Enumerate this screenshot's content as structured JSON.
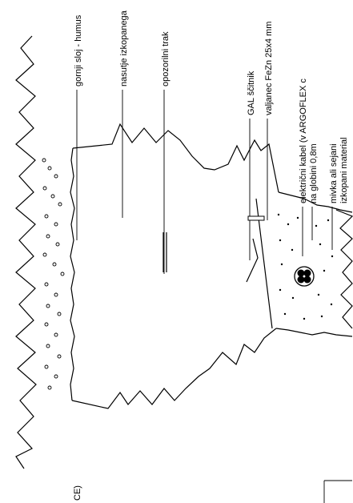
{
  "labels": {
    "top_soil": "gornji sloj - humus",
    "backfill": "nasutje izkopanega",
    "warning_tape": "opozorilni trak",
    "gal_guard": "GAL ščitnik",
    "earthing_strip": "valjanec FeZn 25x4 mm",
    "cable_line1": "električni kabel (v ARGOFLEX c",
    "cable_line2": "na globini 0,8m",
    "sand_line1": "mivka ali sejani",
    "sand_line2": "izkopani material",
    "cut_text": "CE)"
  }
}
